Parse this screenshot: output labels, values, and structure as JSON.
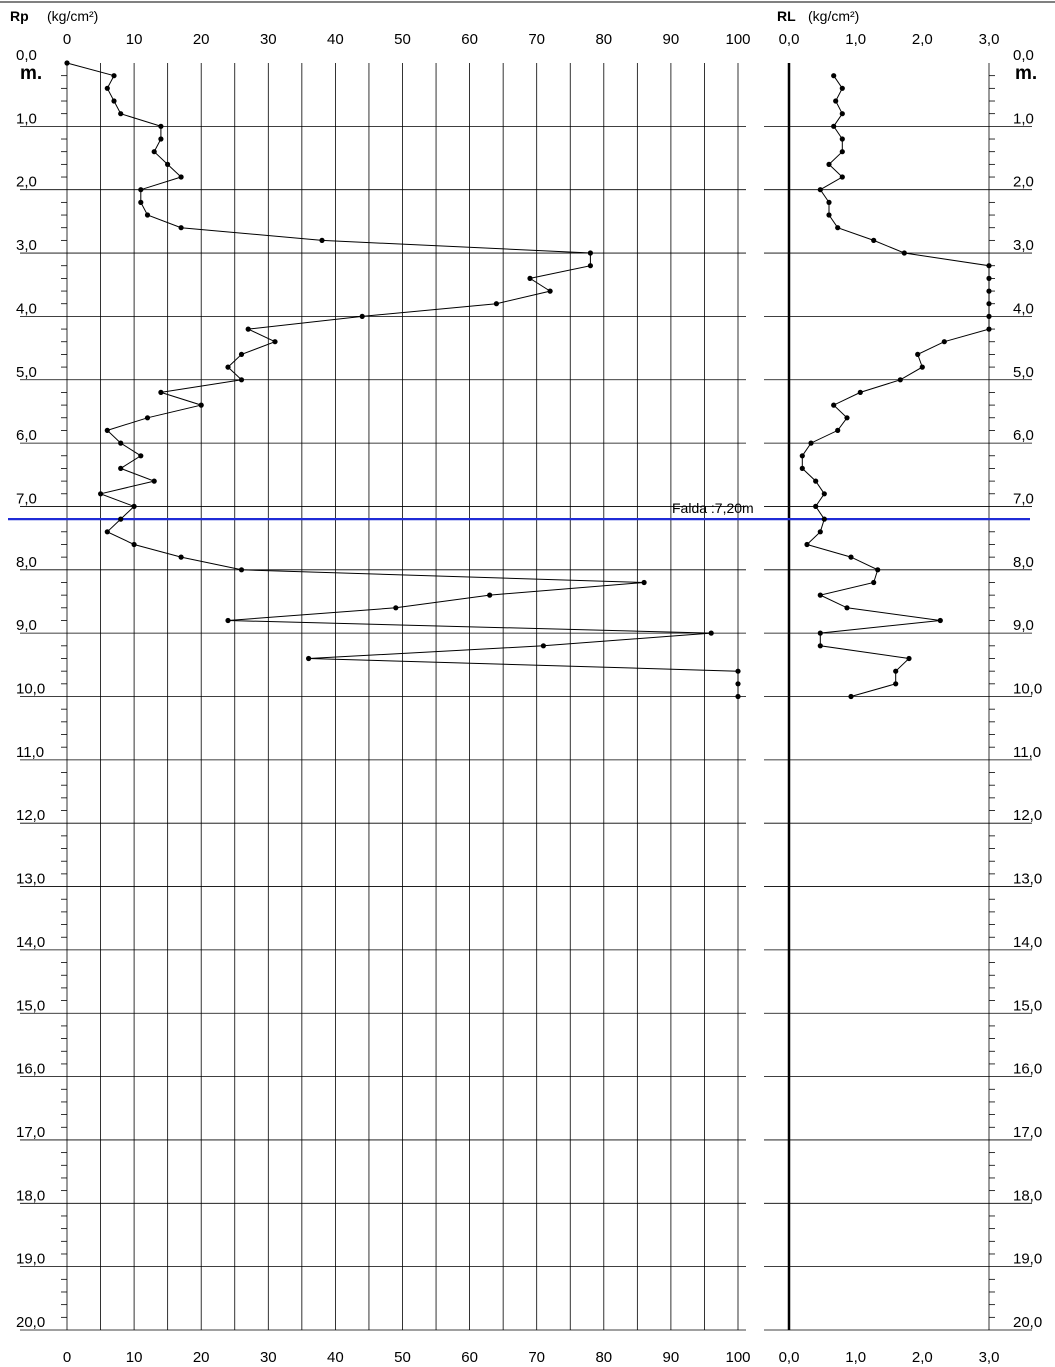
{
  "chart_data": [
    {
      "type": "line",
      "label": "Rp",
      "unit": "(kg/cm²)",
      "xlim": [
        0,
        100
      ],
      "ylim": [
        0,
        20
      ],
      "x_ticks": [
        "0",
        "10",
        "20",
        "30",
        "40",
        "50",
        "60",
        "70",
        "80",
        "90",
        "100"
      ],
      "x": [
        0,
        7,
        6,
        7,
        8,
        14,
        14,
        13,
        15,
        17,
        11,
        11,
        12,
        17,
        38,
        78,
        78,
        69,
        72,
        64,
        44,
        27,
        31,
        26,
        24,
        26,
        14,
        20,
        12,
        6,
        8,
        11,
        8,
        13,
        5,
        10,
        8,
        6,
        10,
        17,
        26,
        86,
        63,
        49,
        24,
        96,
        71,
        36,
        100,
        100,
        100
      ],
      "y": [
        0.0,
        0.2,
        0.4,
        0.6,
        0.8,
        1.0,
        1.2,
        1.4,
        1.6,
        1.8,
        2.0,
        2.2,
        2.4,
        2.6,
        2.8,
        3.0,
        3.2,
        3.4,
        3.6,
        3.8,
        4.0,
        4.2,
        4.4,
        4.6,
        4.8,
        5.0,
        5.2,
        5.4,
        5.6,
        5.8,
        6.0,
        6.2,
        6.4,
        6.6,
        6.8,
        7.0,
        7.2,
        7.4,
        7.6,
        7.8,
        8.0,
        8.2,
        8.4,
        8.6,
        8.8,
        9.0,
        9.2,
        9.4,
        9.6,
        9.8,
        10.0
      ]
    },
    {
      "type": "line",
      "label": "RL",
      "unit": "(kg/cm²)",
      "xlim": [
        0,
        3
      ],
      "ylim": [
        0,
        20
      ],
      "x_ticks": [
        "0,0",
        "1,0",
        "2,0",
        "3,0"
      ],
      "x": [
        0.67,
        0.8,
        0.7,
        0.8,
        0.67,
        0.8,
        0.8,
        0.6,
        0.8,
        0.47,
        0.6,
        0.6,
        0.73,
        1.27,
        1.73,
        3.0,
        3.0,
        3.0,
        3.0,
        3.0,
        3.0,
        2.33,
        1.93,
        2.0,
        1.67,
        1.07,
        0.67,
        0.87,
        0.73,
        0.33,
        0.2,
        0.2,
        0.4,
        0.53,
        0.4,
        0.53,
        0.47,
        0.27,
        0.93,
        1.33,
        1.27,
        0.47,
        0.87,
        2.27,
        0.47,
        0.47,
        1.8,
        1.6,
        1.6,
        0.93
      ],
      "y": [
        0.2,
        0.4,
        0.6,
        0.8,
        1.0,
        1.2,
        1.4,
        1.6,
        1.8,
        2.0,
        2.2,
        2.4,
        2.6,
        2.8,
        3.0,
        3.2,
        3.4,
        3.6,
        3.8,
        4.0,
        4.2,
        4.4,
        4.6,
        4.8,
        5.0,
        5.2,
        5.4,
        5.6,
        5.8,
        6.0,
        6.2,
        6.4,
        6.6,
        6.8,
        7.0,
        7.2,
        7.4,
        7.6,
        7.8,
        8.0,
        8.2,
        8.4,
        8.6,
        8.8,
        9.0,
        9.2,
        9.4,
        9.6,
        9.8,
        10.0
      ]
    }
  ],
  "depth_unit": "m.",
  "depth_labels": [
    "0,0",
    "1,0",
    "2,0",
    "3,0",
    "4,0",
    "5,0",
    "6,0",
    "7,0",
    "8,0",
    "9,0",
    "10,0",
    "11,0",
    "12,0",
    "13,0",
    "14,0",
    "15,0",
    "16,0",
    "17,0",
    "18,0",
    "19,0",
    "20,0"
  ],
  "water_table": {
    "label": "Falda :7,20m",
    "depth": 7.2,
    "color": "#1f2bd6"
  },
  "colors": {
    "line": "#000000",
    "grid": "#000000",
    "water": "#1f2bd6"
  }
}
